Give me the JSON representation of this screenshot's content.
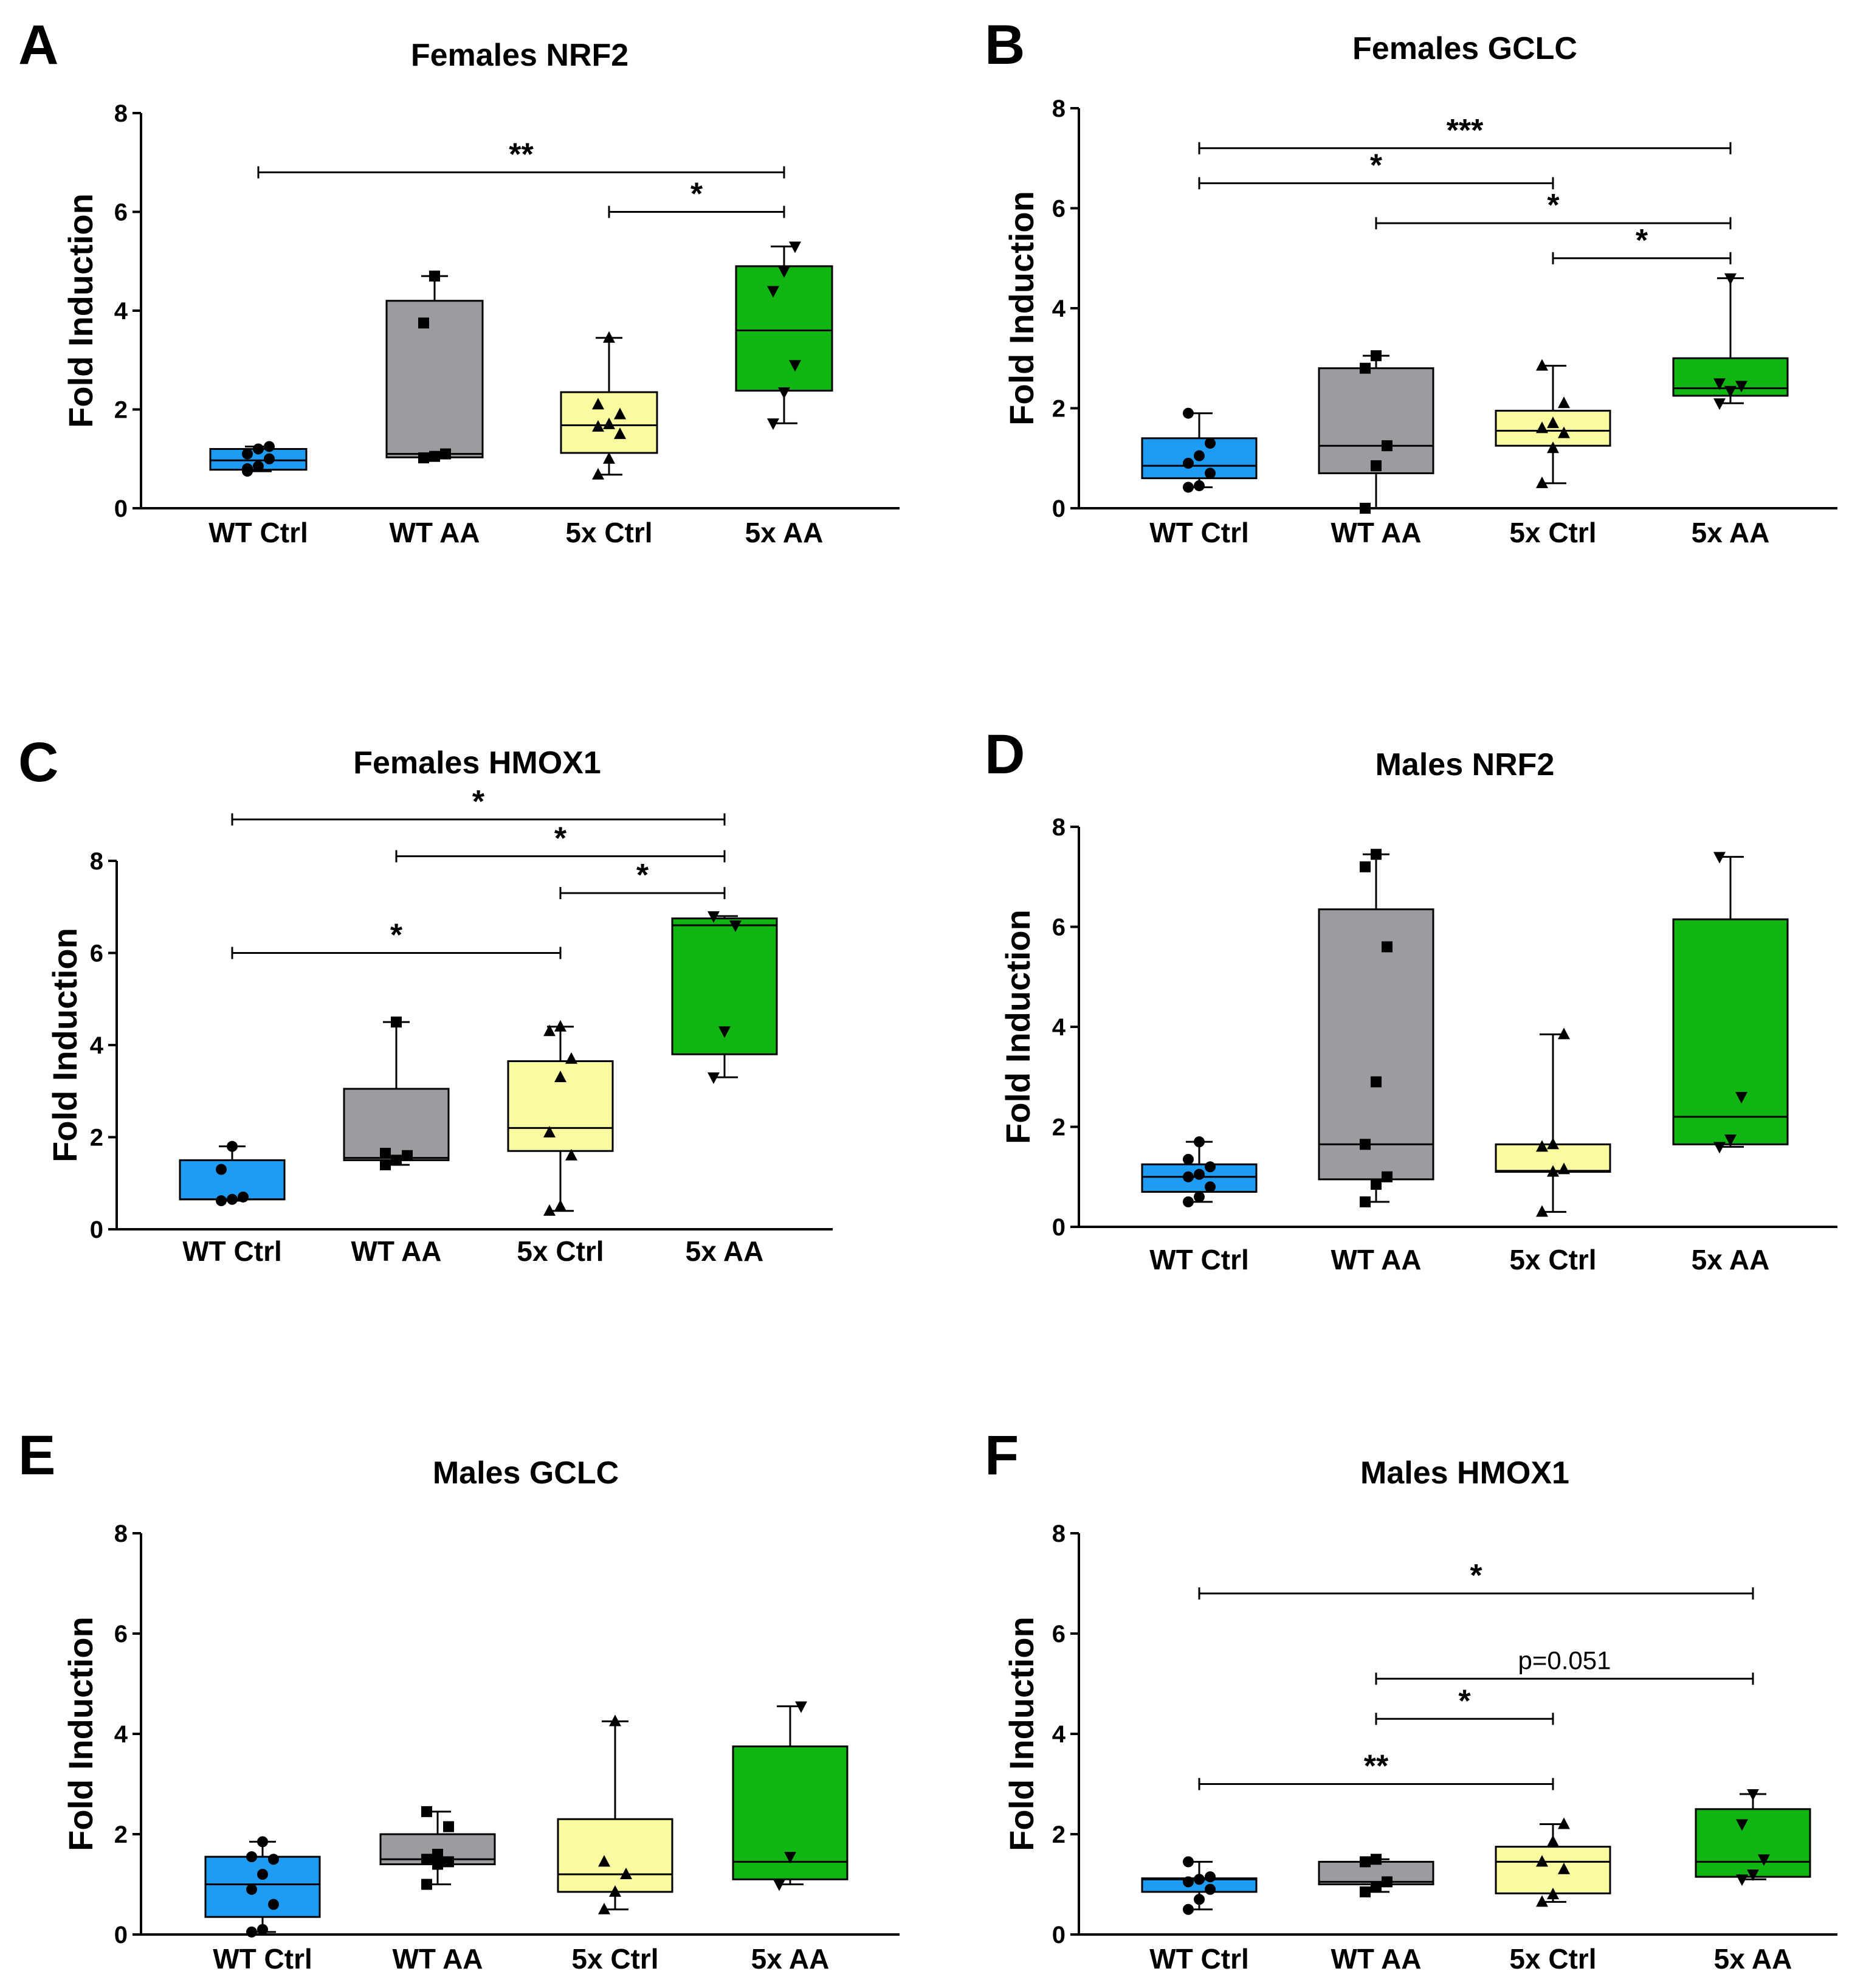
{
  "colors": {
    "wt_ctrl": "#1e9bf2",
    "wt_aa": "#9b9ba0",
    "x5_ctrl": "#fafaa0",
    "x5_aa": "#12b612"
  },
  "chart_data": [
    {
      "panel": "A",
      "title": "Females NRF2",
      "type": "box",
      "ylabel": "Fold Induction",
      "ylim": [
        0,
        8
      ],
      "yticks": [
        "0",
        "2",
        "4",
        "6",
        "8"
      ],
      "categories": [
        "WT Ctrl",
        "WT AA",
        "5x Ctrl",
        "5x AA"
      ],
      "boxes": [
        {
          "min": 0.75,
          "q1": 0.78,
          "median": 0.97,
          "q3": 1.2,
          "max": 1.25
        },
        {
          "min": 1.02,
          "q1": 1.03,
          "median": 1.1,
          "q3": 4.2,
          "max": 4.7
        },
        {
          "min": 0.68,
          "q1": 1.12,
          "median": 1.68,
          "q3": 2.35,
          "max": 3.45
        },
        {
          "min": 1.72,
          "q1": 2.38,
          "median": 3.6,
          "q3": 4.9,
          "max": 5.3
        }
      ],
      "points": [
        [
          0.75,
          0.85,
          1.0,
          1.1,
          1.2,
          1.25,
          0.8
        ],
        [
          1.02,
          1.05,
          1.1,
          3.75,
          4.7
        ],
        [
          0.68,
          1.0,
          1.5,
          1.65,
          1.7,
          1.9,
          2.1,
          3.45
        ],
        [
          1.72,
          2.35,
          2.9,
          4.4,
          4.8,
          5.3
        ]
      ],
      "significance": [
        {
          "from": 0,
          "to": 3,
          "label": "**",
          "y": 6.8
        },
        {
          "from": 2,
          "to": 3,
          "label": "*",
          "y": 6.0
        }
      ]
    },
    {
      "panel": "B",
      "title": "Females GCLC",
      "type": "box",
      "ylabel": "Fold Induction",
      "ylim": [
        0,
        8
      ],
      "yticks": [
        "0",
        "2",
        "4",
        "6",
        "8"
      ],
      "categories": [
        "WT Ctrl",
        "WT AA",
        "5x Ctrl",
        "5x AA"
      ],
      "boxes": [
        {
          "min": 0.42,
          "q1": 0.6,
          "median": 0.85,
          "q3": 1.4,
          "max": 1.9
        },
        {
          "min": 0.0,
          "q1": 0.7,
          "median": 1.25,
          "q3": 2.8,
          "max": 3.05
        },
        {
          "min": 0.5,
          "q1": 1.25,
          "median": 1.55,
          "q3": 1.95,
          "max": 2.85
        },
        {
          "min": 2.1,
          "q1": 2.25,
          "median": 2.4,
          "q3": 3.0,
          "max": 4.6
        }
      ],
      "points": [
        [
          0.42,
          0.45,
          0.7,
          0.9,
          1.05,
          1.3,
          1.9
        ],
        [
          0.0,
          0.85,
          1.25,
          2.8,
          3.05
        ],
        [
          0.5,
          1.2,
          1.5,
          1.6,
          1.7,
          2.1,
          2.85
        ],
        [
          2.1,
          2.35,
          2.45,
          2.5,
          4.6
        ]
      ],
      "significance": [
        {
          "from": 0,
          "to": 3,
          "label": "***",
          "y": 7.2
        },
        {
          "from": 0,
          "to": 2,
          "label": "*",
          "y": 6.5
        },
        {
          "from": 1,
          "to": 3,
          "label": "*",
          "y": 5.7
        },
        {
          "from": 2,
          "to": 3,
          "label": "*",
          "y": 5.0
        }
      ]
    },
    {
      "panel": "C",
      "title": "Females HMOX1",
      "type": "box",
      "ylabel": "Fold Induction",
      "ylim": [
        0,
        8
      ],
      "yticks": [
        "0",
        "2",
        "4",
        "6",
        "8"
      ],
      "categories": [
        "WT Ctrl",
        "WT AA",
        "5x Ctrl",
        "5x AA"
      ],
      "boxes": [
        {
          "min": 0.62,
          "q1": 0.65,
          "median": 0.65,
          "q3": 1.5,
          "max": 1.8
        },
        {
          "min": 1.4,
          "q1": 1.5,
          "median": 1.55,
          "q3": 3.05,
          "max": 4.5
        },
        {
          "min": 0.4,
          "q1": 1.7,
          "median": 2.2,
          "q3": 3.65,
          "max": 4.4
        },
        {
          "min": 3.3,
          "q1": 3.8,
          "median": 6.6,
          "q3": 6.75,
          "max": 6.8
        }
      ],
      "points": [
        [
          0.62,
          0.65,
          0.7,
          1.3,
          1.8
        ],
        [
          1.4,
          1.5,
          1.6,
          1.65,
          4.5
        ],
        [
          0.4,
          0.5,
          1.6,
          2.1,
          3.3,
          3.7,
          4.3,
          4.4
        ],
        [
          3.3,
          4.3,
          6.6,
          6.8
        ]
      ],
      "significance": [
        {
          "from": 0,
          "to": 3,
          "label": "*",
          "y": 8.9
        },
        {
          "from": 1,
          "to": 3,
          "label": "*",
          "y": 8.1
        },
        {
          "from": 2,
          "to": 3,
          "label": "*",
          "y": 7.3
        },
        {
          "from": 0,
          "to": 2,
          "label": "*",
          "y": 6.0
        }
      ]
    },
    {
      "panel": "D",
      "title": "Males NRF2",
      "type": "box",
      "ylabel": "Fold Induction",
      "ylim": [
        0,
        8
      ],
      "yticks": [
        "0",
        "2",
        "4",
        "6",
        "8"
      ],
      "categories": [
        "WT Ctrl",
        "WT AA",
        "5x Ctrl",
        "5x AA"
      ],
      "boxes": [
        {
          "min": 0.5,
          "q1": 0.7,
          "median": 1.0,
          "q3": 1.25,
          "max": 1.7
        },
        {
          "min": 0.5,
          "q1": 0.95,
          "median": 1.65,
          "q3": 6.35,
          "max": 7.45
        },
        {
          "min": 0.3,
          "q1": 1.1,
          "median": 1.12,
          "q3": 1.65,
          "max": 3.85
        },
        {
          "min": 1.6,
          "q1": 1.65,
          "median": 2.2,
          "q3": 6.15,
          "max": 7.4
        }
      ],
      "points": [
        [
          0.5,
          0.6,
          0.8,
          1.0,
          1.05,
          1.2,
          1.35,
          1.7
        ],
        [
          0.5,
          0.85,
          1.0,
          1.65,
          2.9,
          5.6,
          7.2,
          7.45
        ],
        [
          0.3,
          1.1,
          1.15,
          1.6,
          1.65,
          3.85
        ],
        [
          1.6,
          1.75,
          2.6,
          7.4
        ]
      ],
      "significance": []
    },
    {
      "panel": "E",
      "title": "Males GCLC",
      "type": "box",
      "ylabel": "Fold Induction",
      "ylim": [
        0,
        8
      ],
      "yticks": [
        "0",
        "2",
        "4",
        "6",
        "8"
      ],
      "categories": [
        "WT Ctrl",
        "WT AA",
        "5x Ctrl",
        "5x AA"
      ],
      "boxes": [
        {
          "min": 0.05,
          "q1": 0.35,
          "median": 1.0,
          "q3": 1.55,
          "max": 1.85
        },
        {
          "min": 1.0,
          "q1": 1.4,
          "median": 1.5,
          "q3": 2.0,
          "max": 2.45
        },
        {
          "min": 0.5,
          "q1": 0.85,
          "median": 1.2,
          "q3": 2.3,
          "max": 4.25
        },
        {
          "min": 1.0,
          "q1": 1.1,
          "median": 1.45,
          "q3": 3.75,
          "max": 4.55
        }
      ],
      "points": [
        [
          0.05,
          0.1,
          0.6,
          0.9,
          1.2,
          1.5,
          1.55,
          1.85
        ],
        [
          1.0,
          1.4,
          1.45,
          1.5,
          1.6,
          2.15,
          2.45
        ],
        [
          0.5,
          0.85,
          1.2,
          1.45,
          4.25
        ],
        [
          1.0,
          1.55,
          4.55
        ]
      ],
      "significance": []
    },
    {
      "panel": "F",
      "title": "Males HMOX1",
      "type": "box",
      "ylabel": "Fold Induction",
      "ylim": [
        0,
        8
      ],
      "yticks": [
        "0",
        "2",
        "4",
        "6",
        "8"
      ],
      "categories": [
        "WT Ctrl",
        "WT AA",
        "5x Ctrl",
        "5x AA"
      ],
      "boxes": [
        {
          "min": 0.5,
          "q1": 0.85,
          "median": 1.1,
          "q3": 1.12,
          "max": 1.45
        },
        {
          "min": 0.85,
          "q1": 1.0,
          "median": 1.05,
          "q3": 1.45,
          "max": 1.5
        },
        {
          "min": 0.65,
          "q1": 0.82,
          "median": 1.45,
          "q3": 1.75,
          "max": 2.2
        },
        {
          "min": 1.1,
          "q1": 1.15,
          "median": 1.45,
          "q3": 2.5,
          "max": 2.8
        }
      ],
      "points": [
        [
          0.5,
          0.7,
          0.9,
          1.05,
          1.1,
          1.15,
          1.45
        ],
        [
          0.85,
          0.95,
          1.05,
          1.45,
          1.5
        ],
        [
          0.65,
          0.8,
          1.3,
          1.45,
          1.85,
          2.2
        ],
        [
          1.1,
          1.2,
          1.5,
          2.2,
          2.8
        ]
      ],
      "significance": [
        {
          "from": 0,
          "to": 3,
          "label": "*",
          "y": 6.8
        },
        {
          "from": 1,
          "to": 3,
          "label": "p=0.051",
          "y": 5.1,
          "plain": true
        },
        {
          "from": 1,
          "to": 2,
          "label": "*",
          "y": 4.3
        },
        {
          "from": 0,
          "to": 2,
          "label": "**",
          "y": 3.0
        }
      ]
    }
  ]
}
